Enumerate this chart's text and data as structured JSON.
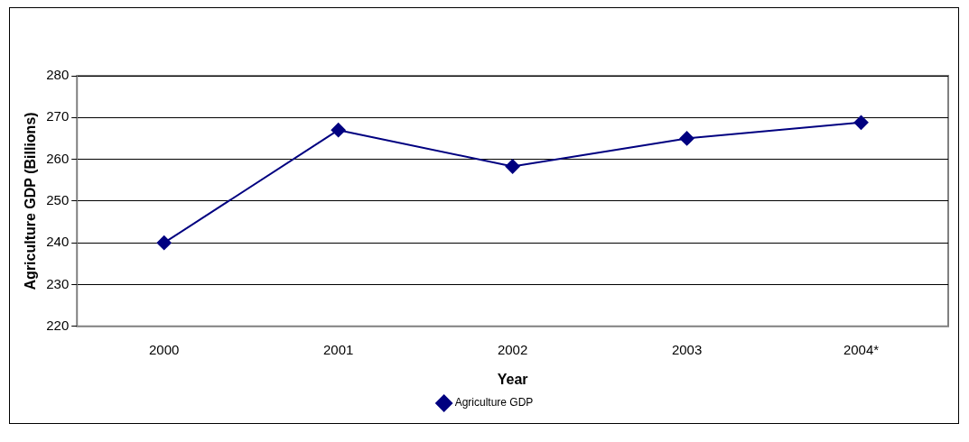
{
  "chart_data": {
    "type": "line",
    "xlabel": "Year",
    "ylabel": "Agriculture GDP (Billions)",
    "categories": [
      "2000",
      "2001",
      "2002",
      "2003",
      "2004*"
    ],
    "series": [
      {
        "name": "Agriculture GDP",
        "color": "#000080",
        "values": [
          240,
          267,
          258.3,
          265,
          268.8
        ]
      }
    ],
    "ylim": [
      220,
      280
    ],
    "yticks": [
      220,
      230,
      240,
      250,
      260,
      270,
      280
    ],
    "grid": "y",
    "legend": "bottom",
    "marker": "diamond",
    "line_style": "solid"
  }
}
